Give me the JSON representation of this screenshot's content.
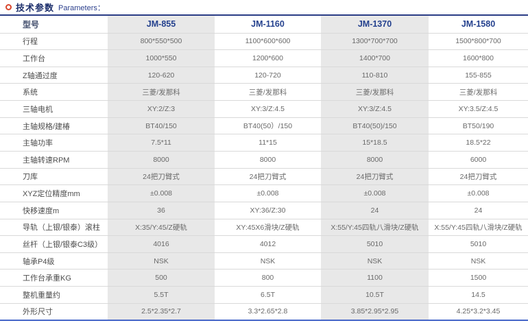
{
  "title": {
    "zh": "技术参数",
    "en": "Parameters："
  },
  "colors": {
    "accent_navy": "#24418e",
    "stripe_gray": "#e8e8e8",
    "top_border": "#2a3c85",
    "bottom_border": "#4565c8",
    "icon_red": "#d9452c"
  },
  "table": {
    "columns": [
      "型号",
      "JM-855",
      "JM-1160",
      "JM-1370",
      "JM-1580"
    ],
    "striped_columns": [
      "JM-855",
      "JM-1370"
    ],
    "rows": [
      {
        "label": "行程",
        "values": [
          "800*550*500",
          "1100*600*600",
          "1300*700*700",
          "1500*800*700"
        ]
      },
      {
        "label": "工作台",
        "values": [
          "1000*550",
          "1200*600",
          "1400*700",
          "1600*800"
        ]
      },
      {
        "label": "Z轴通过度",
        "values": [
          "120-620",
          "120-720",
          "110-810",
          "155-855"
        ]
      },
      {
        "label": "系统",
        "values": [
          "三菱/发那科",
          "三菱/发那科",
          "三菱/发那科",
          "三菱/发那科"
        ]
      },
      {
        "label": "三轴电机",
        "values": [
          "XY:2/Z:3",
          "XY:3/Z:4.5",
          "XY:3/Z:4.5",
          "XY:3.5/Z:4.5"
        ]
      },
      {
        "label": "主轴规格/建椿",
        "values": [
          "BT40/150",
          "BT40(50）/150",
          "BT40(50)/150",
          "BT50/190"
        ]
      },
      {
        "label": "主轴功率",
        "values": [
          "7.5*11",
          "11*15",
          "15*18.5",
          "18.5*22"
        ]
      },
      {
        "label": "主轴转速RPM",
        "values": [
          "8000",
          "8000",
          "8000",
          "6000"
        ]
      },
      {
        "label": "刀库",
        "values": [
          "24把刀臂式",
          "24把刀臂式",
          "24把刀臂式",
          "24把刀臂式"
        ]
      },
      {
        "label": "XYZ定位精度mm",
        "values": [
          "±0.008",
          "±0.008",
          "±0.008",
          "±0.008"
        ]
      },
      {
        "label": "快移速度m",
        "values": [
          "36",
          "XY:36/Z:30",
          "24",
          "24"
        ]
      },
      {
        "label": "导轨（上银/银泰）滚柱",
        "values": [
          "X:35/Y:45/Z硬轨",
          "XY:45X6滑块/Z硬轨",
          "X:55/Y:45四轨八滑块/Z硬轨",
          "X:55/Y:45四轨八滑块/Z硬轨"
        ]
      },
      {
        "label": "丝杆（上银/银泰C3级）",
        "values": [
          "4016",
          "4012",
          "5010",
          "5010"
        ]
      },
      {
        "label": "轴承P4级",
        "values": [
          "NSK",
          "NSK",
          "NSK",
          "NSK"
        ]
      },
      {
        "label": "工作台承重KG",
        "values": [
          "500",
          "800",
          "1100",
          "1500"
        ]
      },
      {
        "label": "整机重量约",
        "values": [
          "5.5T",
          "6.5T",
          "10.5T",
          "14.5"
        ]
      },
      {
        "label": "外形尺寸",
        "values": [
          "2.5*2.35*2.7",
          "3.3*2.65*2.8",
          "3.85*2.95*2.95",
          "4.25*3.2*3.45"
        ]
      }
    ]
  }
}
